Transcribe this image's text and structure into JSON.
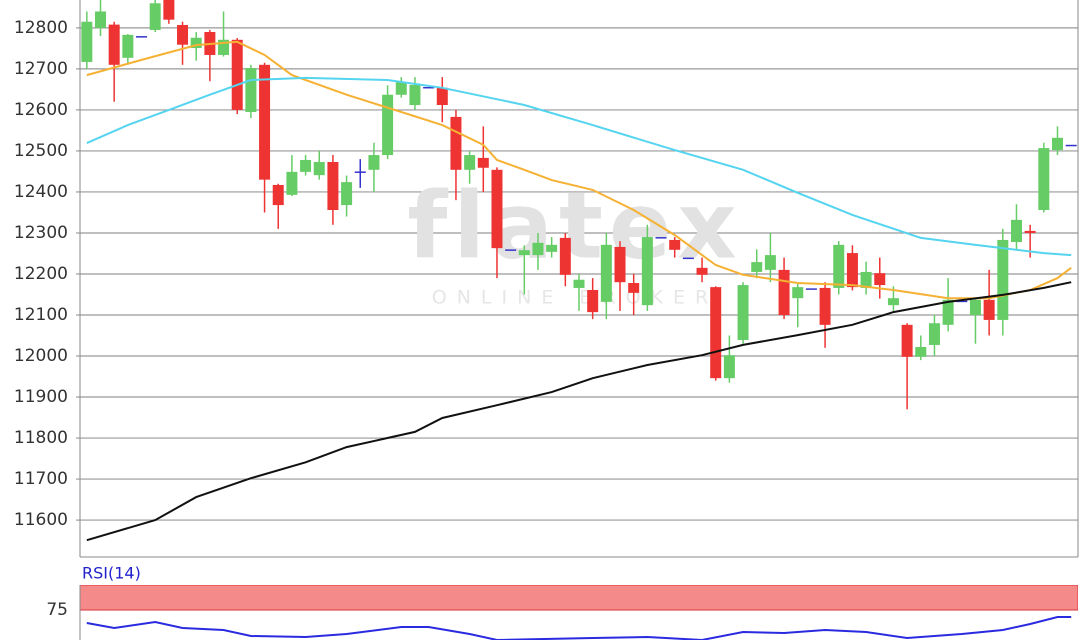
{
  "chart_data": [
    {
      "type": "candlestick",
      "watermark": {
        "text": "flatex",
        "subtext": "ONLINE BROKER"
      },
      "xlim": [
        -0.5,
        72.5
      ],
      "ylim": [
        11510,
        12868
      ],
      "yticks": [
        11600,
        11700,
        11800,
        11900,
        12000,
        12100,
        12200,
        12300,
        12400,
        12500,
        12600,
        12700,
        12800
      ],
      "grid": true,
      "up_color": "#66cc66",
      "down_color": "#ee3333",
      "flat_color": "#3333cc",
      "open": [
        12717,
        12800,
        12808,
        12727,
        12780,
        12795,
        12868,
        12807,
        12751,
        12790,
        12734,
        12771,
        12595,
        12710,
        12417,
        12393,
        12449,
        12441,
        12473,
        12368,
        12450,
        12454,
        12490,
        12637,
        12612,
        12656,
        12654,
        12583,
        12454,
        12483,
        12454,
        12260,
        12246,
        12246,
        12254,
        12288,
        12166,
        12161,
        12132,
        12266,
        12178,
        12124,
        12290,
        12283,
        12240,
        12215,
        12168,
        11946,
        12039,
        12205,
        12210,
        12210,
        12141,
        12165,
        12166,
        12166,
        12251,
        12166,
        12202,
        12124,
        12076,
        11998,
        12027,
        12076,
        12135,
        12100,
        12137,
        12088,
        12278,
        12305,
        12356,
        12502,
        12515
      ],
      "high": [
        12840,
        12868,
        12815,
        12785,
        12780,
        12868,
        12868,
        12815,
        12790,
        12795,
        12840,
        12775,
        12710,
        12715,
        12420,
        12490,
        12490,
        12500,
        12490,
        12440,
        12480,
        12520,
        12660,
        12680,
        12680,
        12656,
        12680,
        12600,
        12500,
        12560,
        12460,
        12260,
        12270,
        12300,
        12290,
        12300,
        12200,
        12190,
        12300,
        12280,
        12200,
        12320,
        12290,
        12290,
        12240,
        12240,
        12170,
        12050,
        12180,
        12260,
        12300,
        12240,
        12180,
        12165,
        12180,
        12280,
        12270,
        12230,
        12240,
        12170,
        12080,
        12050,
        12100,
        12190,
        12135,
        12140,
        12210,
        12310,
        12370,
        12320,
        12520,
        12560,
        12515
      ],
      "low": [
        12700,
        12780,
        12620,
        12710,
        12780,
        12790,
        12810,
        12710,
        12720,
        12670,
        12730,
        12590,
        12580,
        12350,
        12310,
        12390,
        12440,
        12430,
        12320,
        12340,
        12410,
        12400,
        12480,
        12630,
        12600,
        12656,
        12570,
        12380,
        12420,
        12400,
        12190,
        12260,
        12150,
        12210,
        12240,
        12170,
        12110,
        12090,
        12090,
        12110,
        12100,
        12110,
        12290,
        12240,
        12240,
        12180,
        11940,
        11935,
        12030,
        12190,
        12180,
        12090,
        12070,
        12165,
        12020,
        12150,
        12160,
        12150,
        12140,
        12110,
        11870,
        11990,
        12000,
        12060,
        12135,
        12030,
        12050,
        12050,
        12260,
        12240,
        12350,
        12490,
        12515
      ],
      "close": [
        12815,
        12840,
        12710,
        12783,
        12780,
        12860,
        12820,
        12759,
        12776,
        12734,
        12771,
        12600,
        12702,
        12430,
        12368,
        12449,
        12478,
        12473,
        12356,
        12424,
        12450,
        12490,
        12637,
        12668,
        12661,
        12656,
        12612,
        12454,
        12490,
        12459,
        12263,
        12260,
        12258,
        12276,
        12271,
        12198,
        12186,
        12107,
        12271,
        12180,
        12154,
        12290,
        12290,
        12259,
        12240,
        12198,
        11946,
        12002,
        12173,
        12229,
        12246,
        12100,
        12168,
        12165,
        12076,
        12271,
        12168,
        12205,
        12173,
        12141,
        11998,
        12022,
        12080,
        12137,
        12135,
        12137,
        12088,
        12283,
        12332,
        12300,
        12507,
        12532,
        12515
      ],
      "lines": [
        {
          "color": "#f5b133",
          "x": [
            0,
            4,
            8,
            11,
            13,
            15,
            19,
            23,
            26,
            29,
            30,
            32,
            34,
            37,
            40,
            43,
            46,
            48,
            52,
            56,
            59,
            63,
            66,
            69,
            71,
            72
          ],
          "values": [
            12685,
            12722,
            12758,
            12766,
            12734,
            12685,
            12637,
            12595,
            12563,
            12515,
            12478,
            12454,
            12429,
            12405,
            12356,
            12295,
            12222,
            12198,
            12178,
            12173,
            12161,
            12141,
            12141,
            12161,
            12190,
            12215
          ]
        },
        {
          "color": "#55d4f0",
          "x": [
            0,
            3,
            6,
            9,
            12,
            16,
            22,
            26,
            32,
            37,
            43,
            48,
            52,
            56,
            61,
            65,
            70,
            72
          ],
          "values": [
            12519,
            12563,
            12600,
            12637,
            12673,
            12678,
            12673,
            12654,
            12612,
            12563,
            12502,
            12454,
            12398,
            12344,
            12288,
            12271,
            12251,
            12246
          ]
        },
        {
          "color": "#111111",
          "x": [
            0,
            5,
            8,
            12,
            16,
            19,
            24,
            26,
            30,
            34,
            37,
            41,
            45,
            48,
            52,
            56,
            59,
            63,
            67,
            70,
            72
          ],
          "values": [
            11551,
            11600,
            11656,
            11702,
            11741,
            11778,
            11815,
            11849,
            11880,
            11912,
            11946,
            11978,
            12002,
            12027,
            12051,
            12076,
            12107,
            12132,
            12149,
            12166,
            12180
          ]
        }
      ]
    },
    {
      "type": "line",
      "title": "RSI(14)",
      "xlim": [
        -0.5,
        72.5
      ],
      "ylim": [
        45,
        100
      ],
      "yticks": [
        75
      ],
      "band": [
        75,
        100
      ],
      "band_color": "#f58a8a",
      "color": "#2a2ae0",
      "x": [
        0,
        2,
        5,
        7,
        10,
        12,
        16,
        19,
        23,
        25,
        28,
        30,
        37,
        41,
        45,
        48,
        51,
        54,
        57,
        60,
        64,
        67,
        69,
        71,
        72
      ],
      "values": [
        62,
        57,
        63,
        57,
        55,
        49,
        48,
        51,
        58,
        58,
        51,
        45,
        47,
        48,
        45,
        53,
        52,
        55,
        53,
        47,
        51,
        55,
        61,
        68,
        68
      ]
    }
  ]
}
